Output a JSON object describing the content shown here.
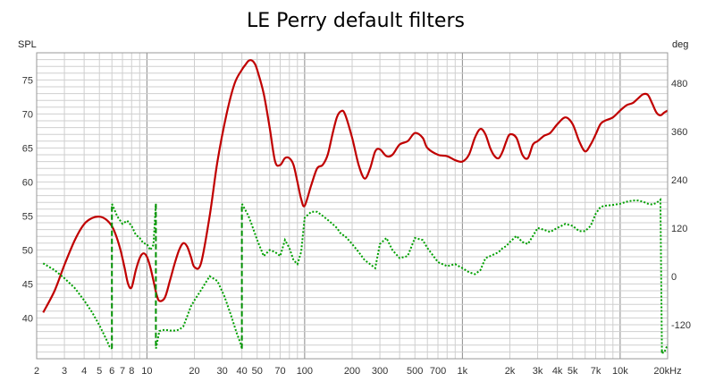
{
  "chart_data": {
    "type": "line",
    "title": "LE Perry default filters",
    "left_axis_label": "SPL",
    "right_axis_label": "deg",
    "x_scale": "log",
    "xlim": [
      2,
      20000
    ],
    "ylim_left": [
      34,
      79
    ],
    "ylim_right": [
      -205,
      555
    ],
    "grid": true,
    "x_ticks": [
      {
        "value": 2,
        "label": "2"
      },
      {
        "value": 3,
        "label": "3"
      },
      {
        "value": 4,
        "label": "4"
      },
      {
        "value": 5,
        "label": "5"
      },
      {
        "value": 6,
        "label": "6"
      },
      {
        "value": 7,
        "label": "7"
      },
      {
        "value": 8,
        "label": "8"
      },
      {
        "value": 10,
        "label": "10"
      },
      {
        "value": 20,
        "label": "20"
      },
      {
        "value": 30,
        "label": "30"
      },
      {
        "value": 40,
        "label": "40"
      },
      {
        "value": 50,
        "label": "50"
      },
      {
        "value": 70,
        "label": "70"
      },
      {
        "value": 100,
        "label": "100"
      },
      {
        "value": 200,
        "label": "200"
      },
      {
        "value": 300,
        "label": "300"
      },
      {
        "value": 500,
        "label": "500"
      },
      {
        "value": 700,
        "label": "700"
      },
      {
        "value": 1000,
        "label": "1k"
      },
      {
        "value": 2000,
        "label": "2k"
      },
      {
        "value": 3000,
        "label": "3k"
      },
      {
        "value": 4000,
        "label": "4k"
      },
      {
        "value": 5000,
        "label": "5k"
      },
      {
        "value": 7000,
        "label": "7k"
      },
      {
        "value": 10000,
        "label": "10k"
      },
      {
        "value": 20000,
        "label": "20kHz"
      }
    ],
    "left_ticks": [
      40,
      45,
      50,
      55,
      60,
      65,
      70,
      75
    ],
    "right_ticks": [
      -120,
      0,
      120,
      240,
      360,
      480
    ],
    "colors": {
      "spl": "#c00000",
      "phase": "#00a000",
      "phase_wrap": "#009000",
      "grid": "#cfcfcf",
      "grid_major": "#8a8a8a",
      "frame": "#999999"
    },
    "series": [
      {
        "key": "spl",
        "axis": "left",
        "x": [
          2.2,
          2.6,
          3,
          3.5,
          4,
          4.5,
          5,
          5.5,
          6,
          6.4,
          6.8,
          7.2,
          7.6,
          8,
          8.5,
          9,
          9.5,
          10,
          10.5,
          11,
          11.5,
          12,
          13,
          14,
          15,
          16,
          17,
          18,
          19,
          20,
          22,
          25,
          28,
          32,
          36,
          40,
          42,
          44,
          46,
          48,
          50,
          55,
          60,
          65,
          70,
          75,
          80,
          85,
          90,
          95,
          100,
          110,
          120,
          130,
          140,
          150,
          160,
          170,
          180,
          200,
          220,
          240,
          260,
          280,
          300,
          330,
          360,
          400,
          450,
          500,
          560,
          600,
          700,
          800,
          900,
          1000,
          1100,
          1200,
          1300,
          1400,
          1500,
          1600,
          1700,
          1800,
          1900,
          2000,
          2200,
          2400,
          2600,
          2800,
          3000,
          3300,
          3600,
          4000,
          4500,
          5000,
          5500,
          6000,
          6500,
          7000,
          7500,
          8000,
          9000,
          10000,
          11000,
          12000,
          13000,
          14000,
          15000,
          16000,
          17000,
          18000,
          19000,
          20000
        ],
        "y": [
          40.8,
          44.0,
          47.8,
          51.5,
          53.8,
          54.7,
          54.9,
          54.5,
          53.5,
          52.0,
          50.0,
          47.5,
          45.0,
          44.5,
          47.0,
          48.8,
          49.5,
          49.0,
          47.5,
          45.5,
          43.5,
          42.5,
          43.0,
          45.5,
          48.0,
          50.0,
          51.0,
          50.5,
          49.0,
          47.5,
          48.0,
          55.0,
          63.0,
          70.0,
          74.5,
          76.5,
          77.2,
          77.8,
          77.9,
          77.5,
          76.5,
          73.0,
          68.0,
          63.0,
          62.5,
          63.5,
          63.5,
          62.5,
          60.0,
          57.5,
          56.5,
          59.5,
          62.0,
          62.5,
          64.0,
          67.0,
          69.5,
          70.4,
          70.0,
          66.5,
          62.5,
          60.5,
          62.0,
          64.5,
          64.8,
          63.8,
          64.0,
          65.5,
          66.0,
          67.2,
          66.5,
          65.0,
          64.0,
          63.8,
          63.2,
          63.0,
          64.0,
          66.5,
          67.8,
          67.0,
          65.0,
          63.8,
          63.5,
          64.5,
          66.0,
          67.0,
          66.5,
          64.0,
          63.5,
          65.5,
          66.0,
          66.8,
          67.2,
          68.5,
          69.5,
          68.5,
          66.0,
          64.5,
          65.5,
          67.0,
          68.5,
          69.0,
          69.5,
          70.5,
          71.3,
          71.6,
          72.3,
          72.9,
          72.8,
          71.5,
          70.2,
          69.8,
          70.2,
          70.5
        ]
      },
      {
        "key": "phase",
        "axis": "right",
        "x": [
          2.2,
          2.6,
          3,
          3.5,
          4,
          4.5,
          5,
          5.5,
          5.8,
          6.0,
          6.0,
          6.5,
          7,
          7.5,
          8,
          8.5,
          9,
          9.5,
          10,
          10.5,
          11,
          11.4,
          11.4,
          12,
          13,
          14,
          15,
          16,
          17,
          18,
          19,
          20,
          22,
          25,
          28,
          31,
          34,
          37,
          39.5,
          40,
          40,
          42,
          44,
          46,
          48,
          50,
          55,
          60,
          65,
          70,
          75,
          80,
          85,
          90,
          95,
          100,
          110,
          120,
          130,
          140,
          150,
          160,
          170,
          180,
          200,
          220,
          240,
          260,
          280,
          300,
          330,
          360,
          400,
          450,
          500,
          560,
          600,
          700,
          800,
          900,
          1000,
          1100,
          1200,
          1300,
          1400,
          1500,
          1600,
          1700,
          1800,
          1900,
          2000,
          2200,
          2400,
          2600,
          2800,
          3000,
          3300,
          3600,
          4000,
          4500,
          5000,
          5500,
          6000,
          6500,
          7000,
          7500,
          8000,
          9000,
          10000,
          11000,
          12000,
          13000,
          14000,
          15000,
          16000,
          17000,
          18000,
          18400,
          18400,
          19000,
          20000
        ],
        "y": [
          32,
          15,
          -5,
          -30,
          -60,
          -90,
          -122,
          -155,
          -175,
          -180,
          180,
          148,
          130,
          138,
          125,
          103,
          95,
          82,
          80,
          65,
          78,
          180,
          -180,
          -136,
          -133,
          -135,
          -135,
          -133,
          -125,
          -100,
          -75,
          -60,
          -35,
          0,
          -12,
          -50,
          -95,
          -140,
          -170,
          -180,
          180,
          165,
          150,
          130,
          110,
          90,
          50,
          65,
          60,
          50,
          90,
          70,
          40,
          30,
          60,
          145,
          160,
          160,
          150,
          140,
          130,
          120,
          105,
          100,
          80,
          60,
          40,
          30,
          20,
          80,
          95,
          65,
          45,
          50,
          95,
          90,
          70,
          35,
          25,
          30,
          20,
          10,
          5,
          15,
          45,
          50,
          55,
          60,
          70,
          75,
          85,
          100,
          85,
          80,
          100,
          120,
          115,
          110,
          120,
          130,
          125,
          112,
          112,
          125,
          155,
          172,
          175,
          177,
          180,
          185,
          188,
          188,
          185,
          180,
          178,
          182,
          190,
          -185,
          -190,
          -190,
          -170
        ]
      }
    ]
  }
}
